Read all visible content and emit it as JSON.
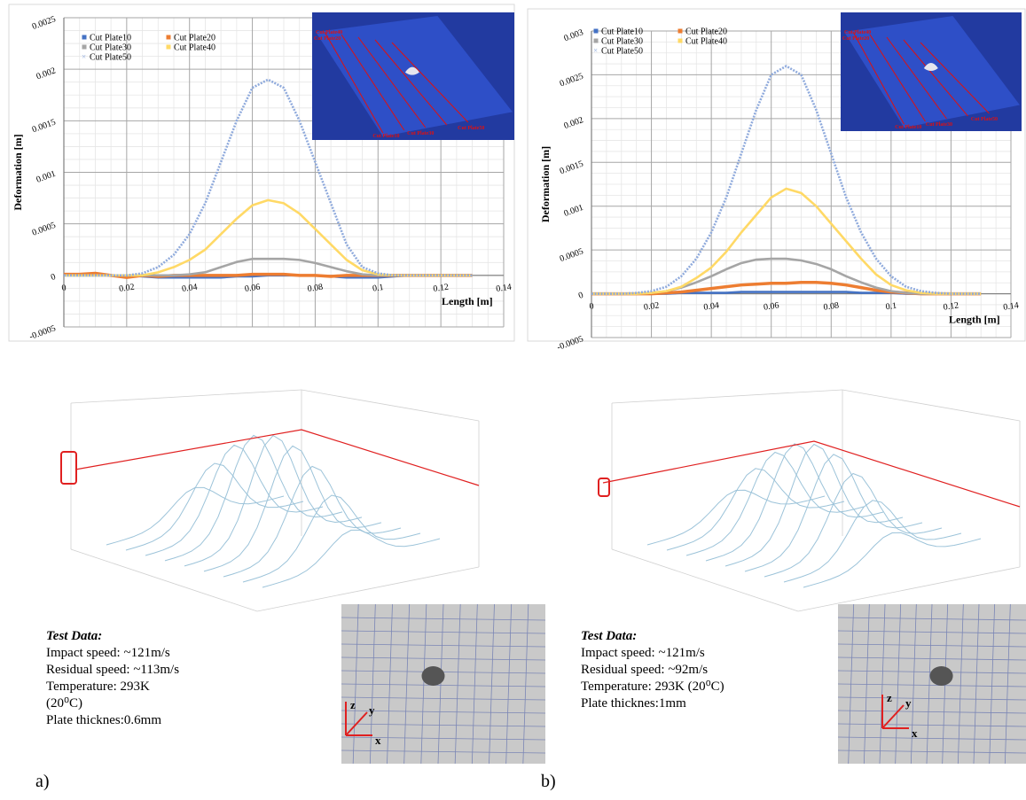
{
  "chart_data": [
    {
      "type": "line",
      "y_label": "Deformation [m]",
      "x_label": "Length [m]",
      "xlim": [
        0,
        0.14
      ],
      "xticks": [
        0,
        0.02,
        0.04,
        0.06,
        0.08,
        0.1,
        0.12,
        0.14
      ],
      "ylim": [
        -0.0005,
        0.0025
      ],
      "yticks": [
        -0.0005,
        0,
        0.0005,
        0.001,
        0.0015,
        0.002,
        0.0025
      ],
      "grid": true,
      "x": [
        0,
        0.005,
        0.01,
        0.015,
        0.02,
        0.025,
        0.03,
        0.035,
        0.04,
        0.045,
        0.05,
        0.055,
        0.06,
        0.065,
        0.07,
        0.075,
        0.08,
        0.085,
        0.09,
        0.095,
        0.1,
        0.105,
        0.11,
        0.115,
        0.12,
        0.125,
        0.13
      ],
      "series": [
        {
          "name": "Cut Plate10",
          "color": "#4472c4",
          "values": [
            0,
            0,
            0,
            0,
            0,
            -1e-05,
            -2e-05,
            -2e-05,
            -2e-05,
            -2e-05,
            -2e-05,
            -1e-05,
            -1e-05,
            0,
            0,
            0,
            0,
            -1e-05,
            -2e-05,
            -2e-05,
            -2e-05,
            -1e-05,
            0,
            0,
            0,
            0,
            0
          ]
        },
        {
          "name": "Cut Plate20",
          "color": "#ed7d31",
          "values": [
            1e-05,
            1e-05,
            2e-05,
            0,
            -2e-05,
            0,
            -1e-05,
            0,
            0,
            0,
            0,
            0,
            1e-05,
            1e-05,
            1e-05,
            0,
            0,
            -1e-05,
            0,
            0,
            0,
            0,
            0,
            0,
            0,
            0,
            0
          ]
        },
        {
          "name": "Cut Plate30",
          "color": "#a5a5a5",
          "values": [
            0,
            0,
            0,
            0,
            0,
            0,
            0,
            0,
            1e-05,
            3e-05,
            8e-05,
            0.00013,
            0.00016,
            0.00016,
            0.00016,
            0.00015,
            0.00012,
            8e-05,
            4e-05,
            1e-05,
            0,
            0,
            0,
            0,
            0,
            0,
            0
          ]
        },
        {
          "name": "Cut Plate40",
          "color": "#ffd966",
          "values": [
            0,
            0,
            0,
            0,
            0,
            0,
            3e-05,
            8e-05,
            0.00015,
            0.00025,
            0.0004,
            0.00055,
            0.00068,
            0.00073,
            0.0007,
            0.0006,
            0.00045,
            0.0003,
            0.00015,
            5e-05,
            1e-05,
            0,
            0,
            0,
            0,
            0,
            0
          ]
        },
        {
          "name": "Cut Plate50",
          "color": "#8faadc",
          "values": [
            0,
            0,
            0,
            0,
            0,
            2e-05,
            8e-05,
            0.0002,
            0.0004,
            0.0007,
            0.0011,
            0.0015,
            0.00182,
            0.0019,
            0.00182,
            0.0015,
            0.0011,
            0.0007,
            0.0003,
            8e-05,
            2e-05,
            0,
            0,
            0,
            0,
            0,
            0
          ]
        }
      ]
    },
    {
      "type": "line",
      "y_label": "Deformation [m]",
      "x_label": "Length [m]",
      "xlim": [
        0,
        0.14
      ],
      "xticks": [
        0,
        0.02,
        0.04,
        0.06,
        0.08,
        0.1,
        0.12,
        0.14
      ],
      "ylim": [
        -0.0005,
        0.003
      ],
      "yticks": [
        -0.0005,
        0,
        0.0005,
        0.001,
        0.0015,
        0.002,
        0.0025,
        0.003
      ],
      "grid": true,
      "x": [
        0,
        0.005,
        0.01,
        0.015,
        0.02,
        0.025,
        0.03,
        0.035,
        0.04,
        0.045,
        0.05,
        0.055,
        0.06,
        0.065,
        0.07,
        0.075,
        0.08,
        0.085,
        0.09,
        0.095,
        0.1,
        0.105,
        0.11,
        0.115,
        0.12,
        0.125,
        0.13
      ],
      "series": [
        {
          "name": "Cut Plate10",
          "color": "#4472c4",
          "values": [
            0,
            0,
            0,
            0,
            0,
            0,
            1e-05,
            1e-05,
            1e-05,
            1e-05,
            2e-05,
            2e-05,
            2e-05,
            2e-05,
            2e-05,
            2e-05,
            2e-05,
            2e-05,
            1e-05,
            1e-05,
            1e-05,
            0,
            0,
            0,
            0,
            0,
            0
          ]
        },
        {
          "name": "Cut Plate20",
          "color": "#ed7d31",
          "values": [
            0,
            0,
            0,
            0,
            0,
            1e-05,
            2e-05,
            4e-05,
            6e-05,
            8e-05,
            0.0001,
            0.00011,
            0.00012,
            0.00012,
            0.00013,
            0.00013,
            0.00012,
            0.0001,
            7e-05,
            4e-05,
            2e-05,
            1e-05,
            0,
            0,
            0,
            0,
            0
          ]
        },
        {
          "name": "Cut Plate30",
          "color": "#a5a5a5",
          "values": [
            0,
            0,
            0,
            0,
            1e-05,
            3e-05,
            7e-05,
            0.00013,
            0.0002,
            0.00028,
            0.00035,
            0.00039,
            0.0004,
            0.0004,
            0.00038,
            0.00034,
            0.00028,
            0.0002,
            0.00013,
            7e-05,
            3e-05,
            1e-05,
            0,
            0,
            0,
            0,
            0
          ]
        },
        {
          "name": "Cut Plate40",
          "color": "#ffd966",
          "values": [
            0,
            0,
            0,
            0,
            1e-05,
            3e-05,
            8e-05,
            0.00018,
            0.0003,
            0.00048,
            0.0007,
            0.0009,
            0.0011,
            0.0012,
            0.00115,
            0.001,
            0.0008,
            0.0006,
            0.0004,
            0.00022,
            0.0001,
            4e-05,
            1e-05,
            0,
            0,
            0,
            0
          ]
        },
        {
          "name": "Cut Plate50",
          "color": "#8faadc",
          "values": [
            0,
            0,
            0,
            1e-05,
            3e-05,
            8e-05,
            0.0002,
            0.0004,
            0.0007,
            0.0011,
            0.0016,
            0.0021,
            0.0025,
            0.0026,
            0.0025,
            0.0021,
            0.0016,
            0.0011,
            0.0007,
            0.0004,
            0.0002,
            8e-05,
            3e-05,
            1e-05,
            0,
            0,
            0
          ]
        }
      ]
    }
  ],
  "panels": [
    {
      "label": "a)",
      "inset_labels": [
        "Cut Plate40",
        "Cut Plate20",
        "Cut Plate10",
        "Cut Plate30",
        "Cut Plate50"
      ],
      "test_data": {
        "title": "Test Data:",
        "lines": [
          "Impact speed: ~121m/s",
          "Residual speed: ~113m/s",
          "Temperature: 293K",
          "(20⁰C)",
          "Plate thicknes:0.6mm"
        ]
      },
      "photo_axes": [
        "z",
        "y",
        "x"
      ]
    },
    {
      "label": "b)",
      "inset_labels": [
        "Cut Plate40",
        "Cut Plate20",
        "Cut Plate10",
        "Cut Plate30",
        "Cut Plate50"
      ],
      "test_data": {
        "title": "Test Data:",
        "lines": [
          "Impact speed: ~121m/s",
          "Residual speed: ~92m/s",
          "Temperature: 293K (20⁰C)",
          "Plate thicknes:1mm"
        ]
      },
      "photo_axes": [
        "z",
        "y",
        "x"
      ]
    }
  ]
}
